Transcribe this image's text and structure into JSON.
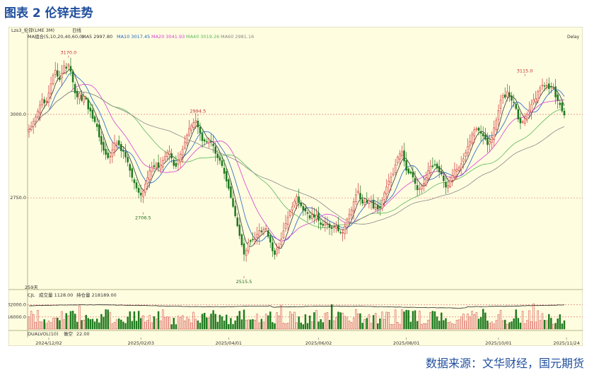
{
  "page": {
    "title": "图表 2 伦锌走势",
    "source": "数据来源：文华财经，国元期货"
  },
  "chart_data": {
    "type": "candlestick",
    "header": {
      "symbol": "Lzs3_伦锌(LME 3M)",
      "period": "日线",
      "ma_label": "MA组合(5,10,20,40,60,0)",
      "ma_values": [
        {
          "name": "MA5",
          "value": "2997.80",
          "color": "#333333"
        },
        {
          "name": "MA10",
          "value": "3017.45",
          "color": "#1e63c8"
        },
        {
          "name": "MA20",
          "value": "3041.93",
          "color": "#d43fd4"
        },
        {
          "name": "MA40",
          "value": "3019.26",
          "color": "#58b858"
        },
        {
          "name": "MA60",
          "value": "2981.16",
          "color": "#888888"
        }
      ],
      "right_tag": "Delay"
    },
    "price_axis": {
      "ticks": [
        3000,
        2750
      ],
      "tick_labels": [
        "3000.0",
        "2750.0"
      ],
      "ylim": [
        2490,
        3220
      ]
    },
    "annotations": [
      {
        "label": "3170.0",
        "i": 18,
        "value": 3170,
        "type": "high"
      },
      {
        "label": "2706.5",
        "i": 52,
        "value": 2706.5,
        "type": "low"
      },
      {
        "label": "2994.5",
        "i": 77,
        "value": 2994.5,
        "type": "high"
      },
      {
        "label": "2515.5",
        "i": 98,
        "value": 2515.5,
        "type": "low"
      },
      {
        "label": "3115.0",
        "i": 226,
        "value": 3115,
        "type": "high"
      }
    ],
    "bars_label": "259天",
    "x_axis": {
      "labels": [
        "2024/12/02",
        "2025/02/03",
        "2025/04/01",
        "2025/06/02",
        "2025/08/01",
        "2025/10/01",
        "2025/11/24"
      ],
      "positions": [
        9,
        51,
        91,
        132,
        172,
        214,
        245
      ]
    },
    "closes": [
      2955,
      2964,
      2979,
      2992,
      3010,
      3028,
      3045,
      3034,
      3040,
      3064,
      3092,
      3118,
      3132,
      3114,
      3104,
      3123,
      3146,
      3138,
      3150,
      3129,
      3097,
      3064,
      3052,
      3063,
      3042,
      3054,
      3046,
      3016,
      3010,
      2988,
      2978,
      2963,
      2932,
      2910,
      2892,
      2880,
      2870,
      2875,
      2894,
      2913,
      2915,
      2908,
      2891,
      2889,
      2872,
      2857,
      2832,
      2811,
      2795,
      2779,
      2766,
      2758,
      2770,
      2791,
      2810,
      2831,
      2842,
      2843,
      2852,
      2841,
      2848,
      2862,
      2874,
      2884,
      2890,
      2869,
      2847,
      2844,
      2864,
      2880,
      2896,
      2917,
      2938,
      2958,
      2966,
      2975,
      2981,
      2962,
      2944,
      2921,
      2920,
      2917,
      2926,
      2917,
      2906,
      2883,
      2870,
      2862,
      2846,
      2823,
      2800,
      2778,
      2751,
      2724,
      2696,
      2666,
      2637,
      2609,
      2581,
      2593,
      2616,
      2619,
      2625,
      2627,
      2641,
      2652,
      2648,
      2656,
      2658,
      2634,
      2617,
      2591,
      2580,
      2596,
      2604,
      2627,
      2651,
      2673,
      2692,
      2709,
      2723,
      2740,
      2754,
      2736,
      2726,
      2713,
      2710,
      2703,
      2689,
      2700,
      2692,
      2698,
      2682,
      2670,
      2667,
      2675,
      2671,
      2661,
      2658,
      2663,
      2665,
      2651,
      2645,
      2646,
      2665,
      2686,
      2700,
      2714,
      2739,
      2759,
      2770,
      2747,
      2734,
      2736,
      2736,
      2743,
      2739,
      2719,
      2722,
      2716,
      2719,
      2743,
      2765,
      2783,
      2800,
      2812,
      2822,
      2849,
      2872,
      2882,
      2888,
      2860,
      2832,
      2824,
      2824,
      2812,
      2793,
      2774,
      2778,
      2786,
      2794,
      2811,
      2832,
      2845,
      2843,
      2848,
      2839,
      2827,
      2821,
      2801,
      2782,
      2787,
      2801,
      2817,
      2834,
      2836,
      2841,
      2852,
      2867,
      2885,
      2904,
      2919,
      2941,
      2954,
      2957,
      2952,
      2943,
      2935,
      2925,
      2909,
      2918,
      2931,
      2960,
      2983,
      3012,
      3043,
      3056,
      3051,
      3068,
      3055,
      3042,
      3035,
      3017,
      2986,
      2974,
      2978,
      2988,
      3001,
      3013,
      3030,
      3044,
      3048,
      3069,
      3080,
      3088,
      3084,
      3087,
      3077,
      3083,
      3079,
      3052,
      3041,
      3029,
      3010,
      2998
    ],
    "volume_axis": {
      "tick_labels": [
        "32000.0",
        "16000.0"
      ],
      "ticks": [
        32000,
        16000
      ],
      "ylim": [
        0,
        40000
      ],
      "header_vol": "成交量 1128.00",
      "header_oi": "持仓量 218189.00",
      "indicator": "CJL"
    },
    "dual_label": "DUALVOL(10)",
    "dual_kong_label": "做空",
    "dual_value": "22.00",
    "colors": {
      "up": "#d0343a",
      "down": "#1e7a1e",
      "background": "#fffde0"
    }
  }
}
